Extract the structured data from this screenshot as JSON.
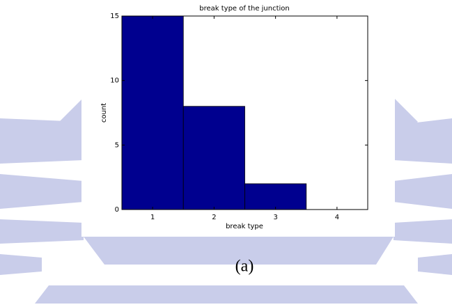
{
  "chart_data": {
    "type": "bar",
    "title": "break type of the junction",
    "x_label": "break type",
    "y_label": "count",
    "x": [
      1,
      2,
      3,
      4
    ],
    "values": [
      15,
      8,
      2,
      0
    ],
    "color": "#00008f",
    "xlim": [
      0.5,
      4.5
    ],
    "xticks": [
      1,
      2,
      3,
      4
    ],
    "ylim": [
      0,
      15
    ],
    "yticks": [
      0,
      5,
      10,
      15
    ]
  },
  "caption": "(a)"
}
